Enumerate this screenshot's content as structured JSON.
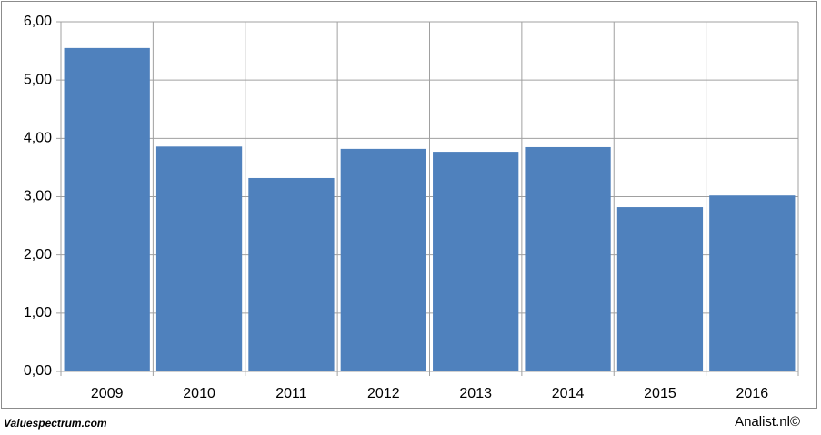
{
  "chart_data": {
    "type": "bar",
    "categories": [
      "2009",
      "2010",
      "2011",
      "2012",
      "2013",
      "2014",
      "2015",
      "2016"
    ],
    "values": [
      5.55,
      3.86,
      3.32,
      3.82,
      3.77,
      3.85,
      2.82,
      3.02
    ],
    "color": "#4f81bd",
    "ylim": [
      0,
      6
    ],
    "yticks": [
      {
        "value": 0,
        "label": "0,00"
      },
      {
        "value": 1,
        "label": "1,00"
      },
      {
        "value": 2,
        "label": "2,00"
      },
      {
        "value": 3,
        "label": "3,00"
      },
      {
        "value": 4,
        "label": "4,00"
      },
      {
        "value": 5,
        "label": "5,00"
      },
      {
        "value": 6,
        "label": "6,00"
      }
    ],
    "grid": true,
    "source": "Valuespectrum.com",
    "credit": "Analist.nl©"
  }
}
